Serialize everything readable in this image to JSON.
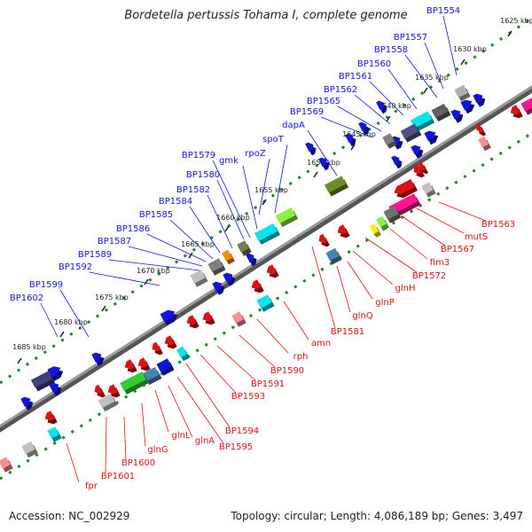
{
  "title": "Bordetella pertussis Tohama I, complete genome",
  "accession": "Accession: NC_002929",
  "topology": "Topology: circular; Length: 4,086,189 bp; Genes: 3,497",
  "colors": {
    "forward": "#1010e0",
    "reverse": "#e01010",
    "backbone": "#777777",
    "ticks": "#1a8a1a"
  },
  "ruler_labels": [
    "1625 kbp",
    "1630 kbp",
    "1635 kbp",
    "1640 kbp",
    "1645 kbp",
    "1650 kbp",
    "1655 kbp",
    "1660 kbp",
    "1665 kbp",
    "1670 kbp",
    "1675 kbp",
    "1680 kbp",
    "1685 kbp"
  ],
  "forward_labels": [
    "BP1554",
    "BP1557",
    "BP1558",
    "BP1560",
    "BP1561",
    "BP1562",
    "BP1565",
    "BP1569",
    "dapA",
    "spoT",
    "rpoZ",
    "gmk",
    "BP1579",
    "BP1580",
    "BP1582",
    "BP1584",
    "BP1585",
    "BP1586",
    "BP1587",
    "BP1589",
    "BP1592",
    "BP1599",
    "BP1602"
  ],
  "reverse_labels": [
    "BP1563",
    "mutS",
    "BP1567",
    "fim3",
    "BP1572",
    "glnH",
    "glnP",
    "glnQ",
    "BP1581",
    "amn",
    "rph",
    "BP1590",
    "BP1591",
    "BP1593",
    "BP1594",
    "BP1595",
    "glnA",
    "glnL",
    "glnG",
    "BP1600",
    "BP1601",
    "fpr"
  ]
}
